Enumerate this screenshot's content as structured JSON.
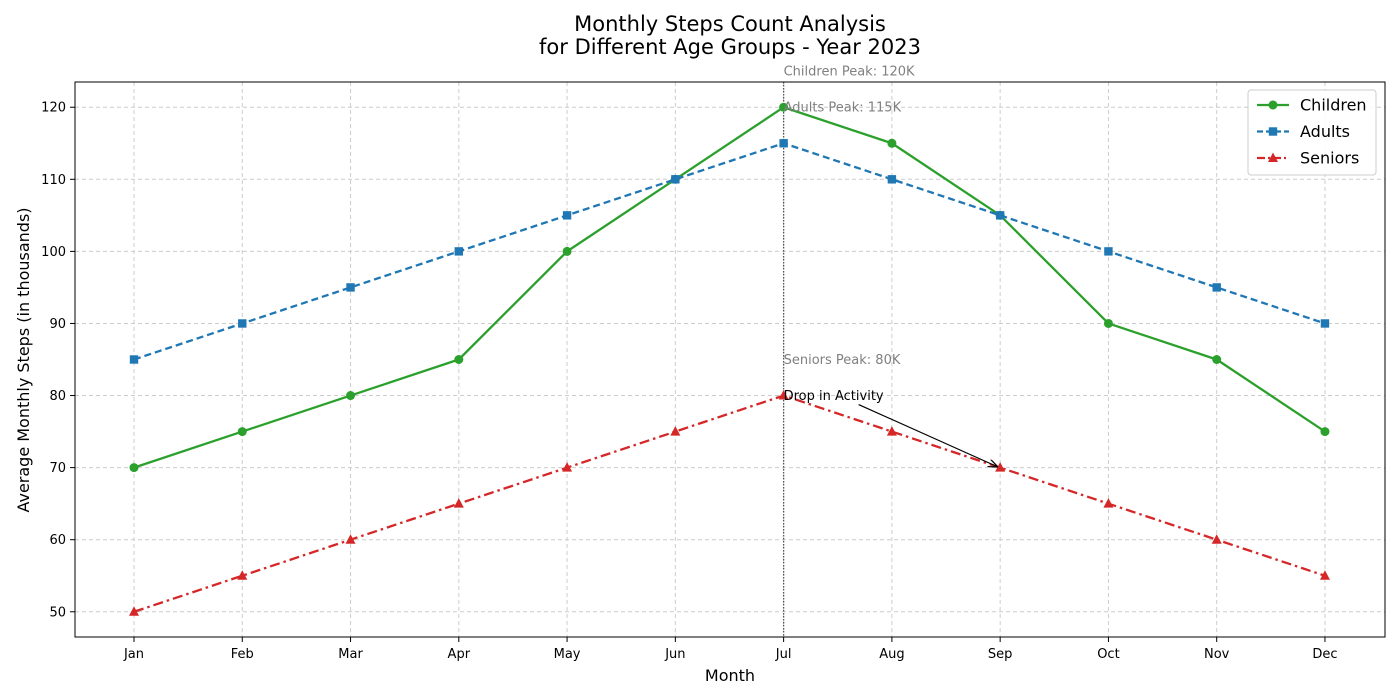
{
  "chart_data": {
    "type": "line",
    "title_lines": [
      "Monthly Steps Count Analysis",
      "for Different Age Groups - Year 2023"
    ],
    "xlabel": "Month",
    "ylabel": "Average Monthly Steps (in thousands)",
    "categories": [
      "Jan",
      "Feb",
      "Mar",
      "Apr",
      "May",
      "Jun",
      "Jul",
      "Aug",
      "Sep",
      "Oct",
      "Nov",
      "Dec"
    ],
    "ylim": [
      46.5,
      123.5
    ],
    "yticks": [
      50,
      60,
      70,
      80,
      90,
      100,
      110,
      120
    ],
    "grid": true,
    "legend_position": "top-right",
    "series": [
      {
        "name": "Children",
        "color": "#2ca02c",
        "linestyle": "solid",
        "marker": "circle",
        "values": [
          70,
          75,
          80,
          85,
          100,
          110,
          120,
          115,
          105,
          90,
          85,
          75
        ]
      },
      {
        "name": "Adults",
        "color": "#1f77b4",
        "linestyle": "dashed",
        "marker": "square",
        "values": [
          85,
          90,
          95,
          100,
          105,
          110,
          115,
          110,
          105,
          100,
          95,
          90
        ]
      },
      {
        "name": "Seniors",
        "color": "#d62728",
        "linestyle": "dashdot",
        "marker": "triangle",
        "values": [
          50,
          55,
          60,
          65,
          70,
          75,
          80,
          75,
          70,
          65,
          60,
          55
        ]
      }
    ],
    "vline": {
      "x": "Jul",
      "color": "#555555"
    },
    "annotations": [
      {
        "text": "Children Peak: 120K",
        "x": "Jul",
        "y": 125,
        "color": "#808080"
      },
      {
        "text": "Adults Peak: 115K",
        "x": "Jul",
        "y": 120,
        "color": "#808080"
      },
      {
        "text": "Seniors Peak: 80K",
        "x": "Jul",
        "y": 85,
        "color": "#808080"
      },
      {
        "text": "Drop in Activity",
        "x": "Jul",
        "y": 80,
        "color": "#000000",
        "arrow_to": {
          "x": "Sep",
          "y": 70
        }
      }
    ]
  }
}
